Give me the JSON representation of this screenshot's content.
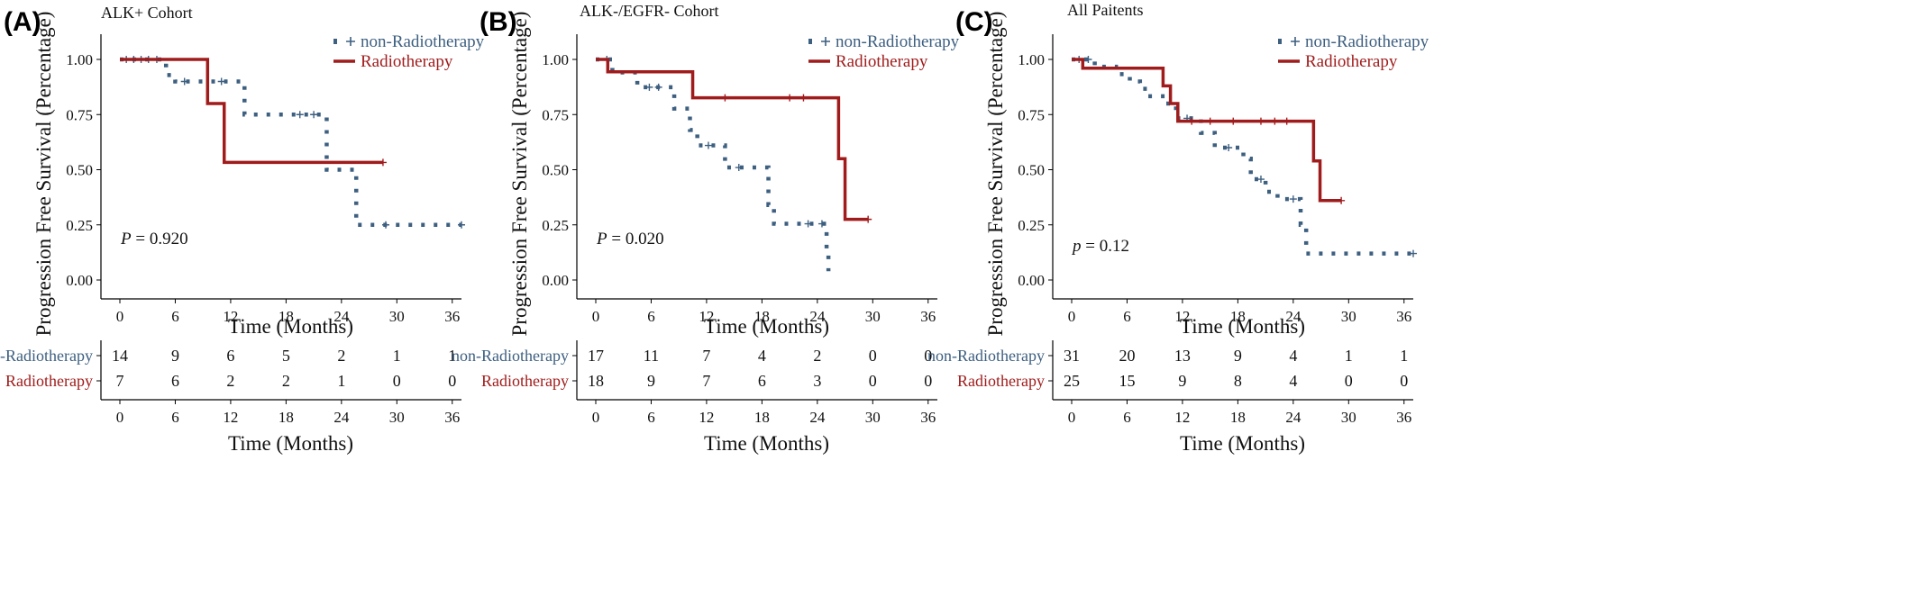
{
  "chart_data": [
    {
      "type": "line",
      "subtype": "kaplan-meier",
      "panel_label": "(A)",
      "title": "ALK+ Cohort",
      "xlabel": "Time (Months)",
      "ylabel": "Progression Free Survival (Percentage)",
      "xticks": [
        0,
        6,
        12,
        18,
        24,
        30,
        36
      ],
      "yticks": [
        "0.00",
        "0.25",
        "0.50",
        "0.75",
        "1.00"
      ],
      "xlim": [
        0,
        37
      ],
      "ylim": [
        0,
        1
      ],
      "legend_position": "top-right",
      "p_prefix": "P",
      "p_value": "= 0.920",
      "series": [
        {
          "name": "non-Radiotherapy",
          "color": "#3d5f80",
          "dashed": true,
          "steps": [
            [
              0,
              1.0
            ],
            [
              5,
              0.929
            ],
            [
              6,
              0.9
            ],
            [
              13.5,
              0.75
            ],
            [
              22.4,
              0.5
            ],
            [
              25.6,
              0.25
            ],
            [
              37,
              0.25
            ]
          ],
          "censors": [
            [
              0.7,
              1.0
            ],
            [
              1.5,
              1.0
            ],
            [
              2.3,
              1.0
            ],
            [
              3.1,
              1.0
            ],
            [
              4.0,
              1.0
            ],
            [
              7,
              0.9
            ],
            [
              11,
              0.9
            ],
            [
              19.5,
              0.75
            ],
            [
              21,
              0.75
            ],
            [
              28.8,
              0.25
            ],
            [
              37,
              0.25
            ]
          ]
        },
        {
          "name": "Radiotherapy",
          "color": "#a01c1c",
          "dashed": false,
          "steps": [
            [
              0,
              1.0
            ],
            [
              9.5,
              0.8
            ],
            [
              11.3,
              0.533
            ],
            [
              28.5,
              0.533
            ]
          ],
          "censors": [
            [
              28.5,
              0.533
            ]
          ]
        }
      ],
      "risk_table": {
        "xlabel": "Time (Months)",
        "xticks": [
          0,
          6,
          12,
          18,
          24,
          30,
          36
        ],
        "rows": [
          {
            "label": "non-Radiotherapy",
            "color": "#3d5f80",
            "values": [
              "14",
              "9",
              "6",
              "5",
              "2",
              "1",
              "1"
            ]
          },
          {
            "label": "Radiotherapy",
            "color": "#a01c1c",
            "values": [
              "7",
              "6",
              "2",
              "2",
              "1",
              "0",
              "0"
            ]
          }
        ]
      }
    },
    {
      "type": "line",
      "subtype": "kaplan-meier",
      "panel_label": "(B)",
      "title": "ALK-/EGFR- Cohort",
      "xlabel": "Time (Months)",
      "ylabel": "Progression Free Survival (Percentage)",
      "xticks": [
        0,
        6,
        12,
        18,
        24,
        30,
        36
      ],
      "yticks": [
        "0.00",
        "0.25",
        "0.50",
        "0.75",
        "1.00"
      ],
      "xlim": [
        0,
        37
      ],
      "ylim": [
        0,
        1
      ],
      "legend_position": "top-right",
      "p_prefix": "P",
      "p_value": "= 0.020",
      "series": [
        {
          "name": "non-Radiotherapy",
          "color": "#3d5f80",
          "dashed": true,
          "steps": [
            [
              0,
              1.0
            ],
            [
              1.8,
              0.941
            ],
            [
              4.5,
              0.874
            ],
            [
              8.5,
              0.777
            ],
            [
              10.2,
              0.68
            ],
            [
              11.0,
              0.61
            ],
            [
              14.0,
              0.51
            ],
            [
              18.7,
              0.34
            ],
            [
              19.3,
              0.255
            ],
            [
              25.0,
              0.128
            ],
            [
              25.2,
              0.04
            ]
          ],
          "censors": [
            [
              1.2,
              1.0
            ],
            [
              5.8,
              0.874
            ],
            [
              6.8,
              0.874
            ],
            [
              12.2,
              0.61
            ],
            [
              15.5,
              0.51
            ],
            [
              23.0,
              0.255
            ],
            [
              24.5,
              0.255
            ]
          ]
        },
        {
          "name": "Radiotherapy",
          "color": "#a01c1c",
          "dashed": false,
          "steps": [
            [
              0,
              1.0
            ],
            [
              1.3,
              0.944
            ],
            [
              10.5,
              0.826
            ],
            [
              26.3,
              0.55
            ],
            [
              27.0,
              0.275
            ],
            [
              29.5,
              0.275
            ]
          ],
          "censors": [
            [
              14.0,
              0.826
            ],
            [
              21.0,
              0.826
            ],
            [
              22.5,
              0.826
            ],
            [
              29.5,
              0.275
            ]
          ]
        }
      ],
      "risk_table": {
        "xlabel": "Time (Months)",
        "xticks": [
          0,
          6,
          12,
          18,
          24,
          30,
          36
        ],
        "rows": [
          {
            "label": "non-Radiotherapy",
            "color": "#3d5f80",
            "values": [
              "17",
              "11",
              "7",
              "4",
              "2",
              "0",
              "0"
            ]
          },
          {
            "label": "Radiotherapy",
            "color": "#a01c1c",
            "values": [
              "18",
              "9",
              "7",
              "6",
              "3",
              "0",
              "0"
            ]
          }
        ]
      }
    },
    {
      "type": "line",
      "subtype": "kaplan-meier",
      "panel_label": "(C)",
      "title": "All Paitents",
      "xlabel": "Time (Months)",
      "ylabel": "Progression Free Survival (Percentage)",
      "xticks": [
        0,
        6,
        12,
        18,
        24,
        30,
        36
      ],
      "yticks": [
        "0.00",
        "0.25",
        "0.50",
        "0.75",
        "1.00"
      ],
      "xlim": [
        0,
        37
      ],
      "ylim": [
        0,
        1
      ],
      "legend_position": "top-right",
      "p_prefix": "p",
      "p_value": "= 0.12",
      "series": [
        {
          "name": "non-Radiotherapy",
          "color": "#3d5f80",
          "dashed": true,
          "steps": [
            [
              0,
              1.0
            ],
            [
              2.5,
              0.967
            ],
            [
              4.8,
              0.933
            ],
            [
              6.3,
              0.9
            ],
            [
              7.4,
              0.867
            ],
            [
              8.3,
              0.833
            ],
            [
              10.2,
              0.8
            ],
            [
              11.3,
              0.733
            ],
            [
              14.0,
              0.667
            ],
            [
              15.5,
              0.6
            ],
            [
              18.6,
              0.55
            ],
            [
              19.4,
              0.457
            ],
            [
              21.0,
              0.4
            ],
            [
              22.3,
              0.367
            ],
            [
              24.8,
              0.25
            ],
            [
              25.4,
              0.12
            ],
            [
              37,
              0.12
            ]
          ],
          "censors": [
            [
              0.8,
              1.0
            ],
            [
              1.8,
              1.0
            ],
            [
              12.5,
              0.733
            ],
            [
              17.0,
              0.6
            ],
            [
              20.5,
              0.457
            ],
            [
              24.0,
              0.367
            ],
            [
              37,
              0.12
            ]
          ]
        },
        {
          "name": "Radiotherapy",
          "color": "#a01c1c",
          "dashed": false,
          "steps": [
            [
              0,
              1.0
            ],
            [
              1.2,
              0.96
            ],
            [
              9.9,
              0.88
            ],
            [
              10.7,
              0.8
            ],
            [
              11.5,
              0.72
            ],
            [
              26.2,
              0.54
            ],
            [
              26.9,
              0.36
            ],
            [
              29.2,
              0.36
            ]
          ],
          "censors": [
            [
              13.0,
              0.72
            ],
            [
              15.0,
              0.72
            ],
            [
              17.5,
              0.72
            ],
            [
              20.5,
              0.72
            ],
            [
              22.0,
              0.72
            ],
            [
              23.3,
              0.72
            ],
            [
              29.2,
              0.36
            ]
          ]
        }
      ],
      "risk_table": {
        "xlabel": "Time (Months)",
        "xticks": [
          0,
          6,
          12,
          18,
          24,
          30,
          36
        ],
        "rows": [
          {
            "label": "non-Radiotherapy",
            "color": "#3d5f80",
            "values": [
              "31",
              "20",
              "13",
              "9",
              "4",
              "1",
              "1"
            ]
          },
          {
            "label": "Radiotherapy",
            "color": "#a01c1c",
            "values": [
              "25",
              "15",
              "9",
              "8",
              "4",
              "0",
              "0"
            ]
          }
        ]
      }
    }
  ]
}
